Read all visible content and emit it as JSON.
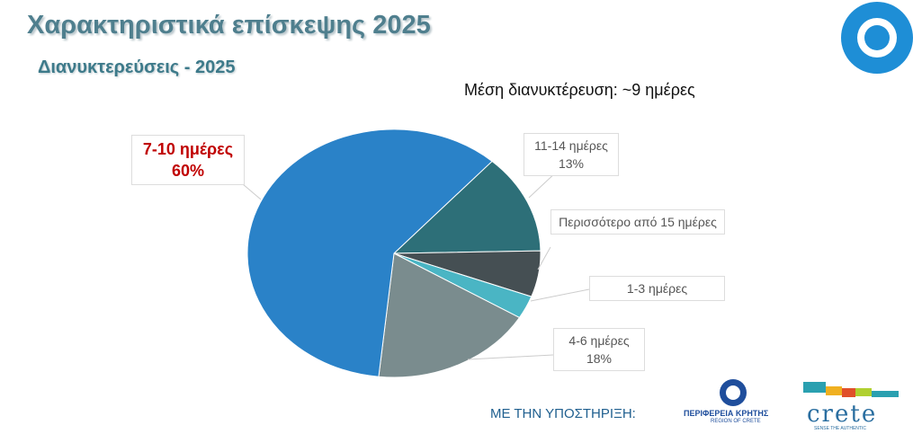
{
  "chart_data": {
    "type": "pie",
    "title": "Χαρακτηριστικά επίσκεψης 2025",
    "subtitle": "Διανυκτερεύσεις - 2025",
    "annotation": "Μέση διανυκτέρευση: ~9 ημέρες",
    "categories": [
      "11-14 ημέρες",
      "Περισσότερο από 15 ημέρες",
      "1-3 ημέρες",
      "4-6 ημέρες",
      "7-10 ημέρες"
    ],
    "values": [
      13,
      6,
      3,
      18,
      60
    ],
    "value_labels": [
      "13%",
      null,
      null,
      "18%",
      "60%"
    ],
    "colors": [
      "#2d6f78",
      "#454f53",
      "#4ab5c4",
      "#7a8c8e",
      "#2a82c8"
    ]
  },
  "footer": {
    "support": "ΜΕ ΤΗΝ ΥΠΟΣΤΗΡΙΞΗ:",
    "region_gr": "ΠΕΡΙΦΕΡΕΙΑ ΚΡΗΤΗΣ",
    "region_en": "REGION OF CRETE",
    "brand": "crete",
    "slogan": "SENSE THE AUTHENTIC"
  }
}
